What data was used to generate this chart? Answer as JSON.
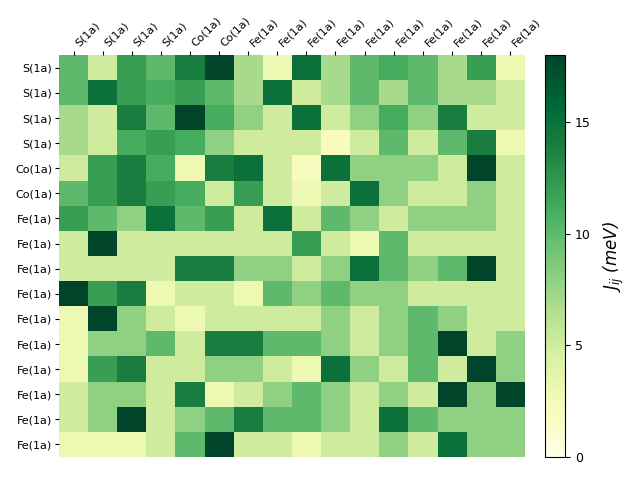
{
  "row_labels": [
    "S(1a)",
    "S(1a)",
    "S(1a)",
    "S(1a)",
    "Co(1a)",
    "Co(1a)",
    "Fe(1a)",
    "Fe(1a)",
    "Fe(1a)",
    "Fe(1a)",
    "Fe(1a)",
    "Fe(1a)",
    "Fe(1a)",
    "Fe(1a)",
    "Fe(1a)",
    "Fe(1a)"
  ],
  "col_labels": [
    "S(1a)",
    "S(1a)",
    "S(1a)",
    "S(1a)",
    "Co(1a)",
    "Co(1a)",
    "Fe(1a)",
    "Fe(1a)",
    "Fe(1a)",
    "Fe(1a)",
    "Fe(1a)",
    "Fe(1a)",
    "Fe(1a)",
    "Fe(1a)",
    "Fe(1a)",
    "Fe(1a)"
  ],
  "vmin": 0,
  "vmax": 18,
  "colorbar_label": "$J_{ij}$ (meV)",
  "colorbar_ticks": [
    0,
    5,
    10,
    15
  ],
  "cmap": "YlGn",
  "matrix": [
    [
      10,
      5,
      12,
      10,
      14,
      18,
      7,
      3,
      15,
      7,
      10,
      11,
      10,
      7,
      12,
      3
    ],
    [
      10,
      15,
      12,
      11,
      12,
      10,
      7,
      15,
      5,
      7,
      10,
      7,
      10,
      7,
      7,
      5
    ],
    [
      7,
      5,
      14,
      10,
      18,
      11,
      8,
      5,
      15,
      5,
      8,
      11,
      8,
      14,
      5,
      5
    ],
    [
      7,
      5,
      11,
      12,
      11,
      8,
      5,
      5,
      5,
      2,
      5,
      10,
      5,
      10,
      14,
      3
    ],
    [
      5,
      12,
      14,
      11,
      3,
      14,
      15,
      5,
      2,
      15,
      8,
      8,
      8,
      5,
      18,
      5
    ],
    [
      10,
      12,
      14,
      12,
      11,
      5,
      12,
      5,
      3,
      5,
      15,
      8,
      5,
      5,
      8,
      5
    ],
    [
      12,
      10,
      8,
      15,
      10,
      12,
      5,
      15,
      5,
      10,
      8,
      5,
      8,
      8,
      8,
      5
    ],
    [
      5,
      18,
      5,
      5,
      5,
      5,
      5,
      5,
      12,
      5,
      3,
      10,
      5,
      5,
      5,
      5
    ],
    [
      5,
      5,
      5,
      5,
      14,
      14,
      8,
      8,
      5,
      8,
      15,
      10,
      8,
      10,
      18,
      5
    ],
    [
      18,
      12,
      14,
      3,
      5,
      5,
      3,
      10,
      8,
      10,
      8,
      8,
      5,
      5,
      5,
      5
    ],
    [
      3,
      18,
      8,
      5,
      3,
      5,
      5,
      5,
      5,
      8,
      5,
      8,
      10,
      8,
      5,
      5
    ],
    [
      3,
      8,
      8,
      10,
      5,
      14,
      14,
      10,
      10,
      8,
      5,
      8,
      10,
      18,
      5,
      8
    ],
    [
      3,
      12,
      14,
      5,
      5,
      8,
      8,
      5,
      3,
      15,
      8,
      5,
      10,
      5,
      18,
      8
    ],
    [
      5,
      8,
      8,
      5,
      14,
      3,
      5,
      8,
      10,
      8,
      5,
      8,
      5,
      18,
      8,
      18
    ],
    [
      5,
      8,
      18,
      5,
      8,
      10,
      14,
      10,
      10,
      8,
      5,
      15,
      10,
      8,
      8,
      8
    ],
    [
      3,
      3,
      3,
      5,
      10,
      18,
      5,
      5,
      3,
      5,
      5,
      8,
      5,
      15,
      8,
      8
    ]
  ]
}
